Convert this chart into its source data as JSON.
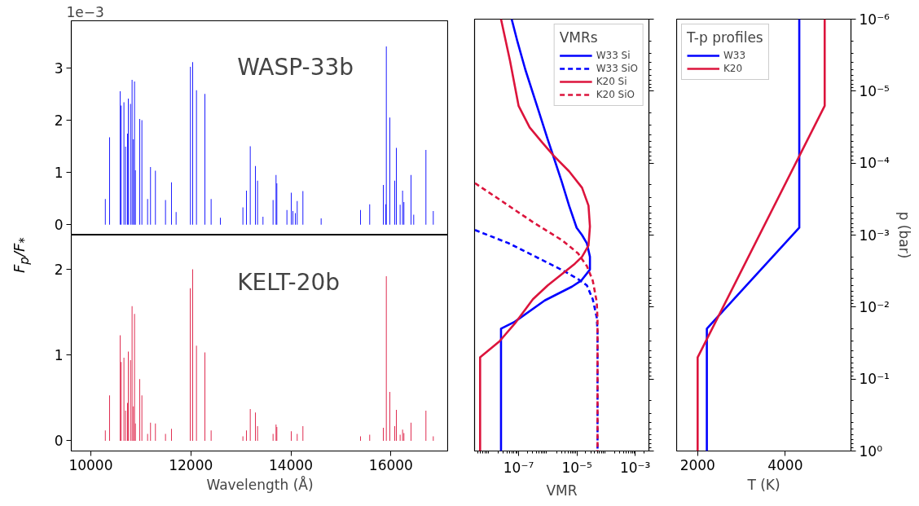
{
  "chart_data": [
    {
      "type": "bar",
      "title": "WASP-33b",
      "ylabel": "F$_{p}$/F$_{*}$",
      "annotations": [
        "1e−3"
      ],
      "xlim": [
        9610,
        17150
      ],
      "ylim": [
        -0.2,
        3.9
      ],
      "yticks": [
        0,
        1,
        2,
        3
      ],
      "tick_labels": "y",
      "x": [
        10290,
        10375,
        10586,
        10608,
        10662,
        10695,
        10733,
        10749,
        10793,
        10825,
        10852,
        10874,
        10890,
        10977,
        11021,
        11135,
        11194,
        11292,
        11493,
        11612,
        11705,
        11992,
        12036,
        12112,
        12280,
        12405,
        12590,
        13040,
        13111,
        13187,
        13290,
        13333,
        13442,
        13643,
        13703,
        13719,
        13920,
        14007,
        14039,
        14088,
        14126,
        14240,
        14604,
        15391,
        15575,
        15847,
        15896,
        15907,
        15977,
        16075,
        16107,
        16183,
        16232,
        16259,
        16401,
        16455,
        16699,
        16846
      ],
      "series": [
        {
          "color": "#0000ff",
          "values": [
            0.49,
            1.67,
            2.55,
            2.28,
            2.34,
            1.49,
            1.74,
            2.41,
            2.31,
            2.77,
            1.63,
            2.74,
            1.04,
            2.02,
            2.0,
            0.49,
            1.1,
            1.03,
            0.47,
            0.81,
            0.24,
            3.02,
            3.11,
            2.57,
            2.5,
            0.49,
            0.13,
            0.33,
            0.65,
            1.5,
            1.12,
            0.84,
            0.15,
            0.47,
            0.95,
            0.79,
            0.28,
            0.61,
            0.26,
            0.22,
            0.45,
            0.64,
            0.12,
            0.28,
            0.39,
            0.76,
            0.39,
            3.41,
            2.05,
            0.84,
            1.47,
            0.38,
            0.65,
            0.43,
            0.95,
            0.19,
            1.43,
            0.26
          ]
        }
      ]
    },
    {
      "type": "bar",
      "title": "KELT-20b",
      "xlabel": "Wavelength (Å)",
      "xlim": [
        9610,
        17150
      ],
      "ylim": [
        -0.12,
        2.4
      ],
      "xticks": [
        10000,
        12000,
        14000,
        16000
      ],
      "yticks": [
        0,
        1,
        2
      ],
      "x": [
        10290,
        10375,
        10586,
        10608,
        10662,
        10695,
        10733,
        10749,
        10793,
        10825,
        10852,
        10874,
        10890,
        10977,
        11021,
        11135,
        11194,
        11292,
        11493,
        11612,
        11987,
        12036,
        12112,
        12280,
        12405,
        13040,
        13111,
        13187,
        13290,
        13333,
        13643,
        13703,
        13719,
        14007,
        14126,
        14240,
        15391,
        15575,
        15847,
        15907,
        15977,
        16075,
        16107,
        16183,
        16232,
        16259,
        16401,
        16699,
        16846
      ],
      "series": [
        {
          "color": "#dc143c",
          "values": [
            0.12,
            0.53,
            1.23,
            0.92,
            0.97,
            0.35,
            0.44,
            1.04,
            0.94,
            1.57,
            0.4,
            1.48,
            0.2,
            0.72,
            0.53,
            0.08,
            0.21,
            0.2,
            0.08,
            0.14,
            1.78,
            2.0,
            1.11,
            1.03,
            0.12,
            0.05,
            0.12,
            0.37,
            0.33,
            0.17,
            0.08,
            0.19,
            0.16,
            0.11,
            0.08,
            0.17,
            0.05,
            0.07,
            0.15,
            1.92,
            0.57,
            0.17,
            0.36,
            0.07,
            0.13,
            0.09,
            0.21,
            0.35,
            0.05
          ]
        }
      ]
    },
    {
      "type": "line",
      "xlabel": "VMR",
      "legend_title": "VMRs",
      "legend": "top right",
      "log": "xy",
      "xlim": [
        3.1e-09,
        0.00295
      ],
      "xticks": [
        {
          "value": 1e-07,
          "label": "10⁻⁷"
        },
        {
          "value": 1e-05,
          "label": "10⁻⁵"
        },
        {
          "value": 0.001,
          "label": "10⁻³"
        }
      ],
      "ylim": [
        1,
        1e-06
      ],
      "tick_labels": "x",
      "series": [
        {
          "name": "W33 Si",
          "color": "#0000ff",
          "line_style": "solid",
          "x": [
            5.8e-08,
            9.3e-08,
            1.7e-07,
            4.9e-07,
            1e-06,
            1.6e-06,
            3e-06,
            5.4e-06,
            9.8e-06,
            1.5e-05,
            2.2e-05,
            2.8e-05,
            2.8e-05,
            2.5e-05,
            1.4e-05,
            6.8e-06,
            7.9e-07,
            7.4e-08,
            2.5e-08,
            2.5e-08
          ],
          "values": [
            1e-06,
            2.1e-06,
            5e-06,
            1.9e-05,
            4.7e-05,
            8.3e-05,
            0.00018,
            0.00039,
            0.00079,
            0.001,
            0.0013,
            0.002,
            0.003,
            0.0032,
            0.0043,
            0.0052,
            0.0081,
            0.016,
            0.02,
            1
          ]
        },
        {
          "name": "W33 SiO",
          "color": "#0000ff",
          "line_style": "dashed",
          "x": [
            3.2e-09,
            4.6e-08,
            4.9e-07,
            3.3e-06,
            1.1e-05,
            2.2e-05,
            3.5e-05,
            4.8e-05,
            5.1e-05,
            5.1e-05
          ],
          "values": [
            0.00085,
            0.0013,
            0.0021,
            0.0031,
            0.0041,
            0.005,
            0.0078,
            0.014,
            0.022,
            1
          ]
        },
        {
          "name": "K20 Si",
          "color": "#dc143c",
          "line_style": "solid",
          "x": [
            2.5e-08,
            5.1e-08,
            1e-07,
            2.4e-07,
            6.3e-07,
            1.6e-06,
            5.4e-06,
            1.5e-05,
            2.5e-05,
            2.8e-05,
            2.5e-05,
            1.5e-05,
            8.5e-06,
            1e-06,
            3.1e-07,
            7.4e-08,
            2.2e-08,
            4.8e-09,
            4.8e-09
          ],
          "values": [
            1e-06,
            3.8e-06,
            1.6e-05,
            3.2e-05,
            5.1e-05,
            7.9e-05,
            0.00013,
            0.00022,
            0.00039,
            0.00076,
            0.0014,
            0.002,
            0.0025,
            0.005,
            0.0078,
            0.017,
            0.03,
            0.05,
            1
          ]
        },
        {
          "name": "K20 SiO",
          "color": "#dc143c",
          "line_style": "dashed",
          "x": [
            3.2e-09,
            2.2e-08,
            3.1e-07,
            3.3e-06,
            1.1e-05,
            2.2e-05,
            3.5e-05,
            4.8e-05,
            5.1e-05,
            5.1e-05
          ],
          "values": [
            0.00019,
            0.00032,
            0.00066,
            0.0012,
            0.0018,
            0.0027,
            0.0043,
            0.0085,
            0.015,
            1
          ]
        }
      ]
    },
    {
      "type": "line",
      "xlabel": "T (K)",
      "ylabel": "p (bar)",
      "legend_title": "T-p profiles",
      "legend": "top left",
      "log": "y",
      "xlim": [
        1520,
        5500
      ],
      "xticks": [
        2000,
        4000
      ],
      "ylim": [
        1,
        1e-06
      ],
      "yticks": [
        {
          "value": 1e-06,
          "label": "10⁻⁶"
        },
        {
          "value": 1e-05,
          "label": "10⁻⁵"
        },
        {
          "value": 0.0001,
          "label": "10⁻⁴"
        },
        {
          "value": 0.001,
          "label": "10⁻³"
        },
        {
          "value": 0.01,
          "label": "10⁻²"
        },
        {
          "value": 0.1,
          "label": "10⁻¹"
        },
        {
          "value": 1,
          "label": "10⁰"
        }
      ],
      "series": [
        {
          "name": "W33",
          "color": "#0000ff",
          "x": [
            4320,
            4320,
            2210,
            2210
          ],
          "values": [
            1e-06,
            0.00079,
            0.02,
            1
          ]
        },
        {
          "name": "K20",
          "color": "#dc143c",
          "x": [
            4900,
            4900,
            2000,
            2000
          ],
          "values": [
            1e-06,
            1.6e-05,
            0.05,
            1
          ]
        }
      ]
    }
  ]
}
